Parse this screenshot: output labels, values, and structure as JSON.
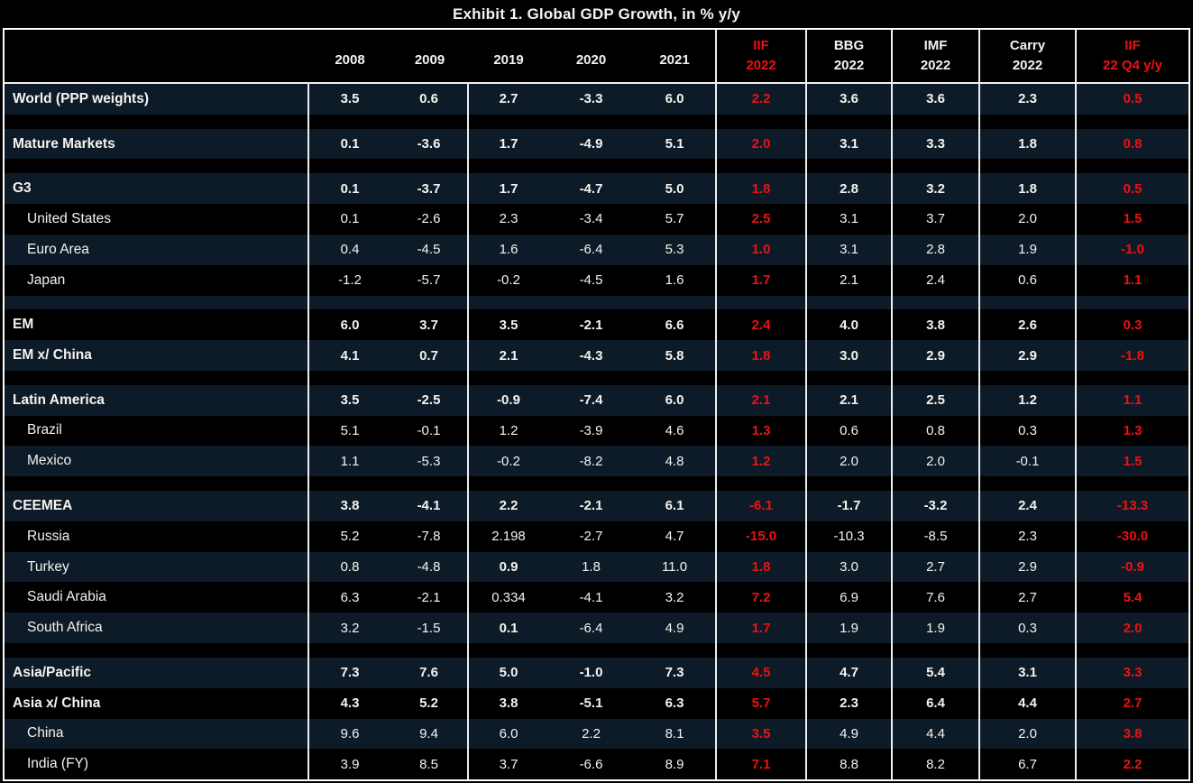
{
  "title": "Exhibit 1. Global GDP Growth, in % y/y",
  "colors": {
    "background": "#000000",
    "row_stripe": "#0d1b28",
    "text": "#f5f3ef",
    "red": "#ee1111",
    "grid_line": "#eeeeee",
    "outer_border": "#ffffff"
  },
  "chart_data": {
    "type": "table",
    "title": "Exhibit 1. Global GDP Growth, in % y/y",
    "columns": [
      {
        "key": "label",
        "header_line1": "",
        "header_line2": "",
        "red": false
      },
      {
        "key": "y2008",
        "header_line1": "",
        "header_line2": "2008",
        "red": false
      },
      {
        "key": "y2009",
        "header_line1": "",
        "header_line2": "2009",
        "red": false
      },
      {
        "key": "y2019",
        "header_line1": "",
        "header_line2": "2019",
        "red": false
      },
      {
        "key": "y2020",
        "header_line1": "",
        "header_line2": "2020",
        "red": false
      },
      {
        "key": "y2021",
        "header_line1": "",
        "header_line2": "2021",
        "red": false
      },
      {
        "key": "iif_2022",
        "header_line1": "IIF",
        "header_line2": "2022",
        "red": true
      },
      {
        "key": "bbg_2022",
        "header_line1": "BBG",
        "header_line2": "2022",
        "red": false
      },
      {
        "key": "imf_2022",
        "header_line1": "IMF",
        "header_line2": "2022",
        "red": false
      },
      {
        "key": "carry_2022",
        "header_line1": "Carry",
        "header_line2": "2022",
        "red": false
      },
      {
        "key": "iif_22q4",
        "header_line1": "IIF",
        "header_line2": "22 Q4 y/y",
        "red": true
      }
    ],
    "red_value_indices": [
      5,
      9
    ],
    "rows": [
      {
        "type": "section",
        "label": "World (PPP weights)",
        "values": [
          "3.5",
          "0.6",
          "2.7",
          "-3.3",
          "6.0",
          "2.2",
          "3.6",
          "3.6",
          "2.3",
          "0.5"
        ]
      },
      {
        "type": "blank",
        "label": "",
        "values": []
      },
      {
        "type": "section",
        "label": "Mature Markets",
        "values": [
          "0.1",
          "-3.6",
          "1.7",
          "-4.9",
          "5.1",
          "2.0",
          "3.1",
          "3.3",
          "1.8",
          "0.8"
        ]
      },
      {
        "type": "blank",
        "label": "",
        "values": []
      },
      {
        "type": "section",
        "label": "G3",
        "values": [
          "0.1",
          "-3.7",
          "1.7",
          "-4.7",
          "5.0",
          "1.8",
          "2.8",
          "3.2",
          "1.8",
          "0.5"
        ]
      },
      {
        "type": "country",
        "label": "United States",
        "values": [
          "0.1",
          "-2.6",
          "2.3",
          "-3.4",
          "5.7",
          "2.5",
          "3.1",
          "3.7",
          "2.0",
          "1.5"
        ]
      },
      {
        "type": "country",
        "label": "Euro Area",
        "values": [
          "0.4",
          "-4.5",
          "1.6",
          "-6.4",
          "5.3",
          "1.0",
          "3.1",
          "2.8",
          "1.9",
          "-1.0"
        ]
      },
      {
        "type": "country",
        "label": "Japan",
        "values": [
          "-1.2",
          "-5.7",
          "-0.2",
          "-4.5",
          "1.6",
          "1.7",
          "2.1",
          "2.4",
          "0.6",
          "1.1"
        ]
      },
      {
        "type": "blank",
        "label": "",
        "values": []
      },
      {
        "type": "section",
        "label": "EM",
        "values": [
          "6.0",
          "3.7",
          "3.5",
          "-2.1",
          "6.6",
          "2.4",
          "4.0",
          "3.8",
          "2.6",
          "0.3"
        ]
      },
      {
        "type": "section",
        "label": "EM x/ China",
        "values": [
          "4.1",
          "0.7",
          "2.1",
          "-4.3",
          "5.8",
          "1.8",
          "3.0",
          "2.9",
          "2.9",
          "-1.8"
        ]
      },
      {
        "type": "blank",
        "label": "",
        "values": []
      },
      {
        "type": "section",
        "label": "Latin America",
        "values": [
          "3.5",
          "-2.5",
          "-0.9",
          "-7.4",
          "6.0",
          "2.1",
          "2.1",
          "2.5",
          "1.2",
          "1.1"
        ]
      },
      {
        "type": "country",
        "label": "Brazil",
        "values": [
          "5.1",
          "-0.1",
          "1.2",
          "-3.9",
          "4.6",
          "1.3",
          "0.6",
          "0.8",
          "0.3",
          "1.3"
        ]
      },
      {
        "type": "country",
        "label": "Mexico",
        "values": [
          "1.1",
          "-5.3",
          "-0.2",
          "-8.2",
          "4.8",
          "1.2",
          "2.0",
          "2.0",
          "-0.1",
          "1.5"
        ]
      },
      {
        "type": "blank",
        "label": "",
        "values": []
      },
      {
        "type": "section",
        "label": "CEEMEA",
        "values": [
          "3.8",
          "-4.1",
          "2.2",
          "-2.1",
          "6.1",
          "-6.1",
          "-1.7",
          "-3.2",
          "2.4",
          "-13.3"
        ]
      },
      {
        "type": "country",
        "label": "Russia",
        "values": [
          "5.2",
          "-7.8",
          "2.198",
          "-2.7",
          "4.7",
          "-15.0",
          "-10.3",
          "-8.5",
          "2.3",
          "-30.0"
        ]
      },
      {
        "type": "country",
        "label": "Turkey",
        "values": [
          "0.8",
          "-4.8",
          "0.9",
          "1.8",
          "11.0",
          "1.8",
          "3.0",
          "2.7",
          "2.9",
          "-0.9"
        ],
        "bold_value_indices": [
          2
        ]
      },
      {
        "type": "country",
        "label": "Saudi Arabia",
        "values": [
          "6.3",
          "-2.1",
          "0.334",
          "-4.1",
          "3.2",
          "7.2",
          "6.9",
          "7.6",
          "2.7",
          "5.4"
        ]
      },
      {
        "type": "country",
        "label": "South Africa",
        "values": [
          "3.2",
          "-1.5",
          "0.1",
          "-6.4",
          "4.9",
          "1.7",
          "1.9",
          "1.9",
          "0.3",
          "2.0"
        ],
        "bold_value_indices": [
          2
        ]
      },
      {
        "type": "blank",
        "label": "",
        "values": []
      },
      {
        "type": "section",
        "label": "Asia/Pacific",
        "values": [
          "7.3",
          "7.6",
          "5.0",
          "-1.0",
          "7.3",
          "4.5",
          "4.7",
          "5.4",
          "3.1",
          "3.3"
        ]
      },
      {
        "type": "section",
        "label": "Asia x/ China",
        "values": [
          "4.3",
          "5.2",
          "3.8",
          "-5.1",
          "6.3",
          "5.7",
          "2.3",
          "6.4",
          "4.4",
          "2.7"
        ]
      },
      {
        "type": "country",
        "label": "China",
        "values": [
          "9.6",
          "9.4",
          "6.0",
          "2.2",
          "8.1",
          "3.5",
          "4.9",
          "4.4",
          "2.0",
          "3.8"
        ]
      },
      {
        "type": "country",
        "label": "India (FY)",
        "values": [
          "3.9",
          "8.5",
          "3.7",
          "-6.6",
          "8.9",
          "7.1",
          "8.8",
          "8.2",
          "6.7",
          "2.2"
        ]
      }
    ]
  }
}
